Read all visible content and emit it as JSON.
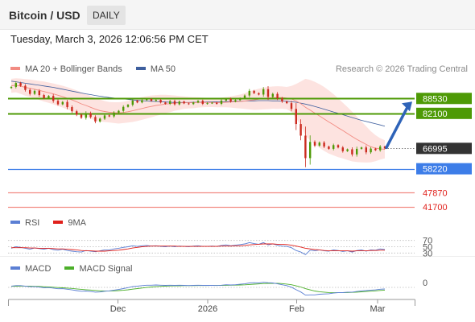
{
  "header": {
    "title": "Bitcoin / USD",
    "timeframe": "DAILY",
    "datetime": "Tuesday, March 3, 2026 12:06:56 PM CET",
    "credit": "Research © 2026 Trading Central"
  },
  "legends": {
    "price": [
      {
        "label": "MA 20 + Bollinger Bands",
        "color": "#f28b82"
      },
      {
        "label": "MA 50",
        "color": "#3e5f9e"
      }
    ],
    "rsi": [
      {
        "label": "RSI",
        "color": "#5b7fd4"
      },
      {
        "label": "9MA",
        "color": "#e0201b"
      }
    ],
    "macd": [
      {
        "label": "MACD",
        "color": "#5b7fd4"
      },
      {
        "label": "MACD Signal",
        "color": "#4caf2a"
      }
    ]
  },
  "colors": {
    "resistance": "#4e9a06",
    "support": "#3d7de8",
    "target": "#f28b82",
    "current_tag": "#333333",
    "arrow": "#2e63b8",
    "candle_up": "#4e9a06",
    "candle_down": "#cc2a1f"
  },
  "chart_data": [
    {
      "type": "candlestick",
      "x_ticks": [
        "Dec",
        "2026",
        "Feb",
        "Mar"
      ],
      "ylim": [
        39000,
        98000
      ],
      "price_levels": [
        {
          "value": 88530,
          "label": "88530",
          "kind": "resistance"
        },
        {
          "value": 82100,
          "label": "82100",
          "kind": "resistance"
        },
        {
          "value": 66995,
          "label": "66995",
          "kind": "current"
        },
        {
          "value": 58220,
          "label": "58220",
          "kind": "support"
        },
        {
          "value": 47870,
          "label": "47870",
          "kind": "target"
        },
        {
          "value": 41700,
          "label": "41700",
          "kind": "target"
        }
      ],
      "close": [
        93500,
        95200,
        94000,
        92200,
        90500,
        91800,
        90000,
        88700,
        89600,
        87500,
        86000,
        87000,
        84800,
        83000,
        81500,
        80200,
        82200,
        80500,
        78600,
        79800,
        81200,
        80800,
        82400,
        83200,
        84900,
        85800,
        87600,
        86800,
        87800,
        88300,
        87500,
        87900,
        86800,
        86200,
        87400,
        86000,
        87200,
        86400,
        86100,
        86800,
        87500,
        86200,
        86500,
        86700,
        86200,
        87600,
        88400,
        87200,
        87800,
        88600,
        89800,
        91800,
        90800,
        90200,
        92500,
        89200,
        90500,
        88600,
        87200,
        86500,
        84000,
        77500,
        72500,
        62800,
        69800,
        68200,
        69500,
        67800,
        66800,
        68400,
        67400,
        65800,
        66600,
        64400,
        66800,
        67400,
        65300,
        66900,
        66200,
        67800,
        66995
      ],
      "ma20": [
        94000,
        94200,
        93800,
        93300,
        92900,
        92500,
        92000,
        91500,
        91000,
        90500,
        89900,
        89300,
        88600,
        87900,
        87100,
        86200,
        85500,
        84700,
        83900,
        83300,
        82900,
        82600,
        82400,
        82300,
        82500,
        82800,
        83200,
        83700,
        84200,
        84700,
        85100,
        85500,
        85800,
        86100,
        86300,
        86500,
        86600,
        86700,
        86700,
        86700,
        86800,
        86800,
        86800,
        86800,
        86700,
        86800,
        86900,
        87000,
        87100,
        87200,
        87400,
        87700,
        87900,
        88200,
        88500,
        88700,
        88900,
        88900,
        88900,
        88700,
        88300,
        87400,
        86300,
        84700,
        83500,
        82200,
        81000,
        79700,
        78400,
        77200,
        75900,
        74700,
        73400,
        72100,
        70900,
        69800,
        68700,
        67700,
        67100,
        66800,
        66600
      ],
      "bb_upper": [
        97000,
        97200,
        97100,
        96900,
        96700,
        96400,
        96100,
        95800,
        95400,
        95000,
        94500,
        94000,
        93400,
        92700,
        92000,
        91200,
        90400,
        89600,
        88800,
        88000,
        87400,
        87000,
        86900,
        86900,
        87100,
        87500,
        88000,
        88600,
        89100,
        89500,
        89800,
        90000,
        90100,
        90100,
        90000,
        89800,
        89600,
        89400,
        89200,
        89100,
        89000,
        88900,
        88800,
        88800,
        88700,
        88900,
        89100,
        89400,
        89800,
        90200,
        90800,
        91600,
        92200,
        92700,
        93200,
        93500,
        93700,
        93800,
        93700,
        93500,
        93900,
        94800,
        95800,
        97000,
        96500,
        95700,
        94700,
        93500,
        92000,
        90400,
        88600,
        86700,
        84800,
        82800,
        80700,
        78600,
        76500,
        74400,
        72700,
        71400,
        70500
      ],
      "bb_lower": [
        91000,
        91200,
        90500,
        89700,
        89100,
        88600,
        87900,
        87200,
        86600,
        86000,
        85300,
        84600,
        83800,
        83100,
        82200,
        81200,
        80600,
        79800,
        79000,
        78600,
        78400,
        78200,
        77900,
        77700,
        77900,
        78100,
        78400,
        78800,
        79300,
        79900,
        80400,
        81000,
        81500,
        82100,
        82600,
        83200,
        83600,
        84000,
        84200,
        84300,
        84600,
        84700,
        84800,
        84800,
        84700,
        84700,
        84700,
        84600,
        84400,
        84200,
        84000,
        83800,
        83600,
        83700,
        83800,
        83900,
        84100,
        84000,
        84100,
        83900,
        82700,
        80000,
        76800,
        72400,
        70500,
        68700,
        67300,
        65900,
        64800,
        64000,
        63200,
        62700,
        62000,
        61400,
        61100,
        61000,
        60900,
        61000,
        61500,
        62200,
        62700
      ],
      "ma50": [
        96000,
        95700,
        95400,
        95100,
        94800,
        94500,
        94200,
        93900,
        93600,
        93300,
        92900,
        92500,
        92100,
        91700,
        91300,
        90900,
        90500,
        90200,
        89800,
        89500,
        89200,
        88900,
        88700,
        88500,
        88300,
        88100,
        87900,
        87700,
        87600,
        87400,
        87300,
        87200,
        87100,
        87000,
        86900,
        86800,
        86800,
        86800,
        86800,
        86900,
        86900,
        86900,
        87000,
        87000,
        87100,
        87100,
        87200,
        87200,
        87300,
        87300,
        87400,
        87500,
        87500,
        87600,
        87600,
        87600,
        87500,
        87500,
        87400,
        87300,
        87100,
        86900,
        86500,
        86100,
        85600,
        85100,
        84500,
        83900,
        83300,
        82700,
        82100,
        81500,
        80900,
        80300,
        79700,
        79100,
        78600,
        78100,
        77600,
        77100,
        76600
      ]
    },
    {
      "type": "line",
      "name_label": "RSI",
      "levels": [
        70,
        50,
        30
      ],
      "ylim": [
        0,
        100
      ],
      "rsi": [
        45,
        50,
        48,
        45,
        42,
        46,
        44,
        42,
        45,
        41,
        39,
        42,
        38,
        36,
        34,
        33,
        38,
        36,
        34,
        37,
        40,
        40,
        43,
        45,
        48,
        50,
        53,
        51,
        53,
        54,
        52,
        53,
        51,
        50,
        52,
        50,
        52,
        51,
        50,
        52,
        53,
        51,
        51,
        52,
        51,
        54,
        56,
        53,
        55,
        57,
        59,
        63,
        60,
        58,
        63,
        56,
        59,
        55,
        52,
        51,
        47,
        38,
        33,
        25,
        39,
        37,
        40,
        37,
        36,
        40,
        38,
        35,
        37,
        33,
        38,
        40,
        36,
        40,
        39,
        43,
        41
      ],
      "rsi_ma9": [
        47,
        47,
        47,
        47,
        46,
        46,
        45,
        45,
        45,
        44,
        43,
        43,
        42,
        41,
        40,
        38,
        37,
        37,
        36,
        36,
        36,
        37,
        38,
        39,
        41,
        43,
        46,
        48,
        50,
        51,
        52,
        52,
        52,
        52,
        52,
        52,
        51,
        51,
        51,
        51,
        51,
        51,
        51,
        51,
        51,
        52,
        52,
        52,
        53,
        53,
        54,
        56,
        57,
        58,
        59,
        59,
        59,
        58,
        58,
        57,
        55,
        52,
        49,
        45,
        43,
        41,
        40,
        38,
        37,
        37,
        37,
        37,
        37,
        36,
        37,
        37,
        37,
        38,
        38,
        39,
        39
      ]
    },
    {
      "type": "line",
      "name_label": "MACD",
      "zero_label": "0",
      "macd": [
        400,
        600,
        600,
        400,
        150,
        150,
        -50,
        -350,
        -250,
        -500,
        -800,
        -750,
        -1000,
        -1300,
        -1600,
        -1900,
        -1800,
        -2000,
        -2300,
        -2200,
        -1900,
        -1700,
        -1400,
        -1100,
        -700,
        -300,
        200,
        400,
        600,
        800,
        800,
        900,
        800,
        700,
        800,
        700,
        800,
        700,
        650,
        700,
        800,
        700,
        700,
        700,
        650,
        800,
        1000,
        900,
        1000,
        1200,
        1400,
        1800,
        1900,
        1800,
        2100,
        1900,
        1800,
        1400,
        1000,
        600,
        -100,
        -1200,
        -2200,
        -3600,
        -3500,
        -3500,
        -3200,
        -3100,
        -3000,
        -2700,
        -2500,
        -2500,
        -2300,
        -2300,
        -2000,
        -1700,
        -1600,
        -1400,
        -1300,
        -1000,
        -900
      ],
      "signal": [
        300,
        350,
        400,
        400,
        350,
        300,
        250,
        100,
        0,
        -100,
        -250,
        -350,
        -500,
        -650,
        -850,
        -1050,
        -1200,
        -1350,
        -1550,
        -1700,
        -1750,
        -1750,
        -1700,
        -1600,
        -1450,
        -1250,
        -950,
        -700,
        -450,
        -200,
        0,
        150,
        300,
        400,
        450,
        500,
        550,
        600,
        600,
        620,
        650,
        650,
        650,
        670,
        670,
        690,
        750,
        780,
        820,
        880,
        960,
        1100,
        1250,
        1350,
        1500,
        1600,
        1650,
        1600,
        1500,
        1300,
        1000,
        500,
        0,
        -750,
        -1300,
        -1800,
        -2100,
        -2300,
        -2450,
        -2550,
        -2550,
        -2500,
        -2450,
        -2400,
        -2300,
        -2150,
        -2000,
        -1850,
        -1700,
        -1550,
        -1400
      ]
    }
  ]
}
